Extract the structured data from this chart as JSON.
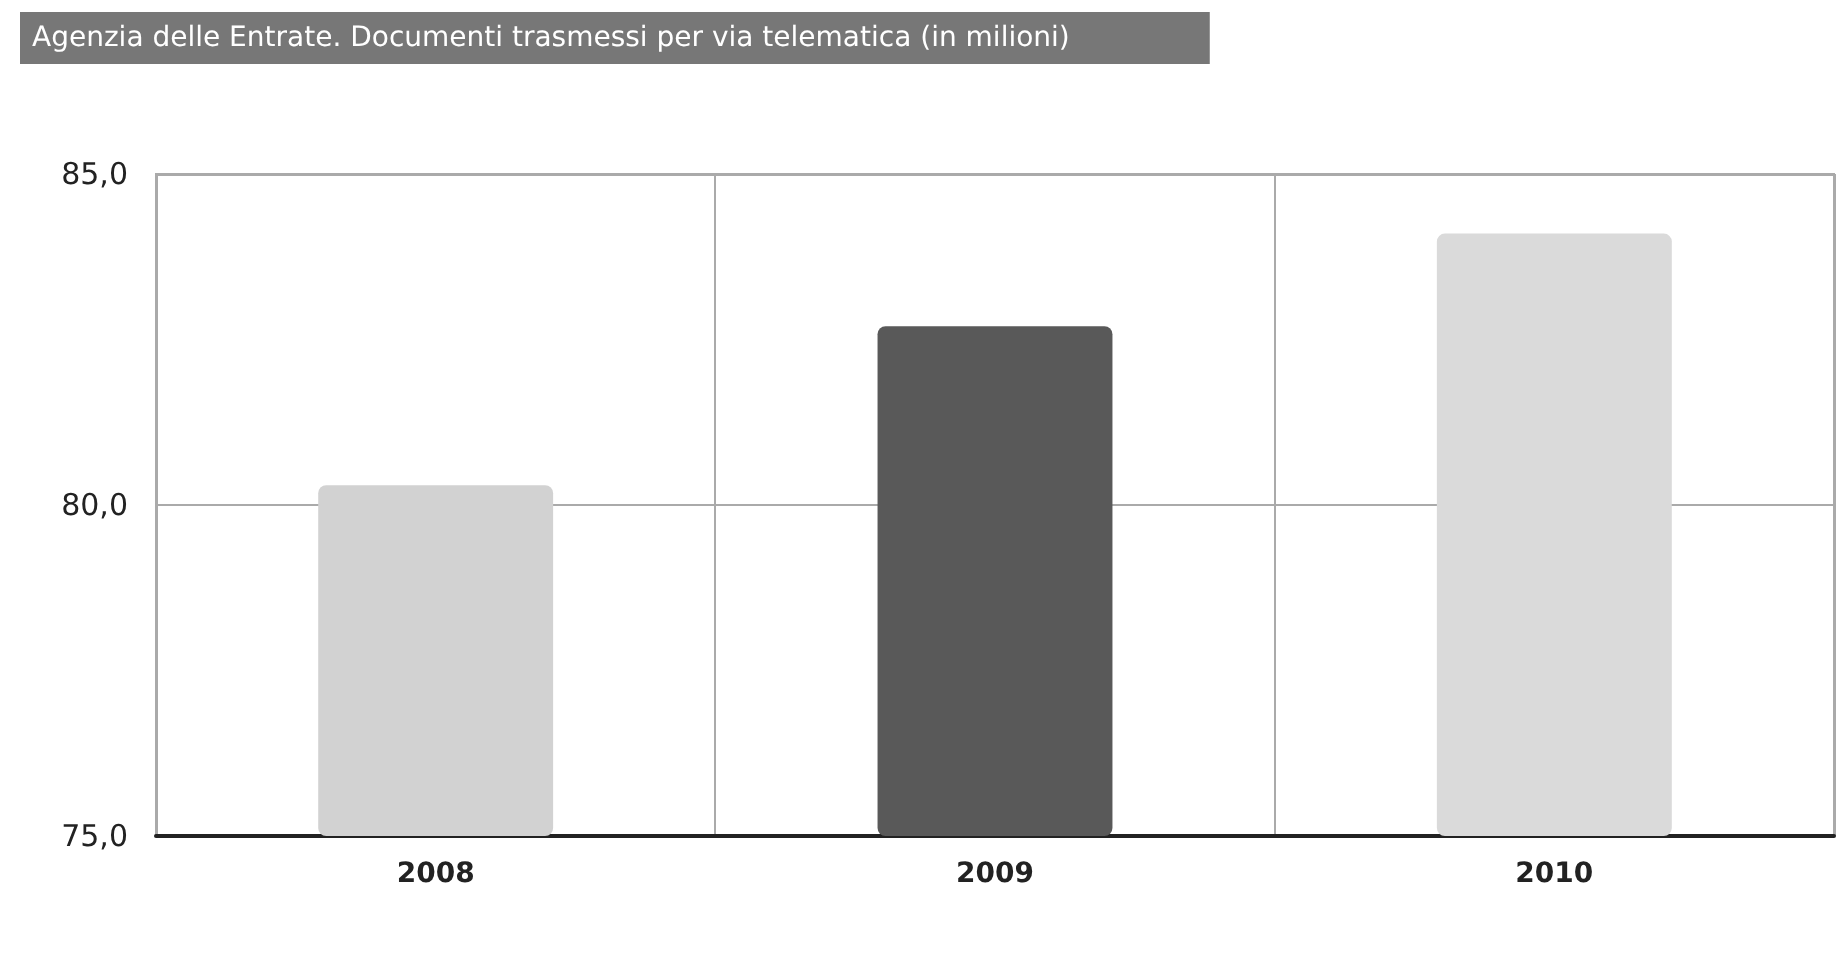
{
  "chart_data": {
    "type": "bar",
    "title": "Agenzia delle Entrate. Documenti trasmessi per via telematica (in milioni)",
    "categories": [
      "2008",
      "2009",
      "2010"
    ],
    "values": [
      80.3,
      82.7,
      84.1
    ],
    "colors": [
      "#d2d2d2",
      "#595959",
      "#dadada"
    ],
    "ylim": [
      75,
      85
    ],
    "yticks": [
      {
        "value": 75,
        "label": "75,0"
      },
      {
        "value": 80,
        "label": "80,0"
      },
      {
        "value": 85,
        "label": "85,0"
      }
    ],
    "grid": true
  }
}
